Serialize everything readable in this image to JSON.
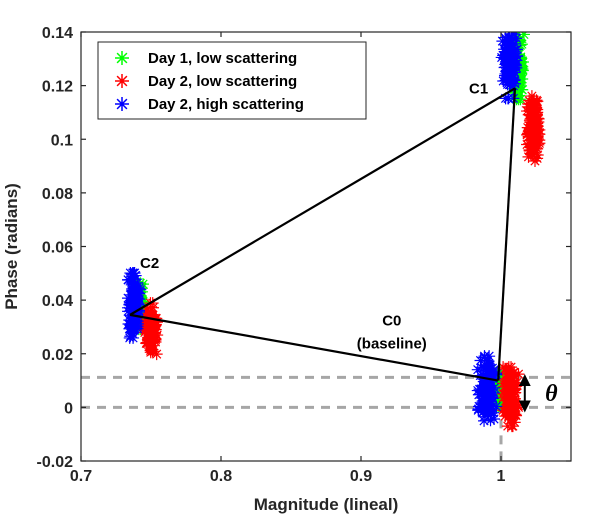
{
  "chart_data": {
    "type": "scatter",
    "title": "",
    "xlabel": "Magnitude (lineal)",
    "ylabel": "Phase (radians)",
    "xlim": [
      0.7,
      1.05
    ],
    "ylim": [
      -0.02,
      0.14
    ],
    "x_ticks": [
      0.7,
      0.8,
      0.9,
      1.0
    ],
    "x_tick_labels": [
      "0.7",
      "0.8",
      "0.9",
      "1"
    ],
    "y_ticks": [
      -0.02,
      0,
      0.02,
      0.04,
      0.06,
      0.08,
      0.1,
      0.12,
      0.14
    ],
    "y_tick_labels": [
      "-0.02",
      "0",
      "0.02",
      "0.04",
      "0.06",
      "0.08",
      "0.1",
      "0.12",
      "0.14"
    ],
    "grid": false,
    "legend_position": "top-left",
    "marker": "asterisk",
    "series": [
      {
        "name": "Day 1, low scattering",
        "color": "#00ff00",
        "clusters": [
          {
            "x_center": 1.0,
            "y_center": 0.007,
            "x_spread": 0.01,
            "y_spread": 0.012
          },
          {
            "x_center": 0.741,
            "y_center": 0.038,
            "x_spread": 0.006,
            "y_spread": 0.016
          },
          {
            "x_center": 1.012,
            "y_center": 0.127,
            "x_spread": 0.008,
            "y_spread": 0.022
          }
        ]
      },
      {
        "name": "Day 2, low scattering",
        "color": "#ff0000",
        "clusters": [
          {
            "x_center": 1.007,
            "y_center": 0.004,
            "x_spread": 0.01,
            "y_spread": 0.02
          },
          {
            "x_center": 0.75,
            "y_center": 0.029,
            "x_spread": 0.008,
            "y_spread": 0.018
          },
          {
            "x_center": 1.023,
            "y_center": 0.104,
            "x_spread": 0.008,
            "y_spread": 0.022
          }
        ]
      },
      {
        "name": "Day 2, high scattering",
        "color": "#0000ff",
        "clusters": [
          {
            "x_center": 0.99,
            "y_center": 0.007,
            "x_spread": 0.012,
            "y_spread": 0.022
          },
          {
            "x_center": 0.738,
            "y_center": 0.038,
            "x_spread": 0.008,
            "y_spread": 0.022
          },
          {
            "x_center": 1.006,
            "y_center": 0.129,
            "x_spread": 0.01,
            "y_spread": 0.025
          }
        ]
      }
    ],
    "triangle": [
      {
        "x": 0.735,
        "y": 0.0345
      },
      {
        "x": 1.01,
        "y": 0.119
      },
      {
        "x": 0.998,
        "y": 0.01
      }
    ],
    "reference_lines": {
      "vertical_x": 1.0,
      "horizontal_y": [
        0.0,
        0.0112
      ],
      "color": "#a6a6a6"
    },
    "annotations": [
      {
        "text": "C1",
        "x": 0.984,
        "y": 0.1185
      },
      {
        "text": "C2",
        "x": 0.749,
        "y": 0.0535
      },
      {
        "text": "C0",
        "x": 0.922,
        "y": 0.032
      },
      {
        "text": "(baseline)",
        "x": 0.922,
        "y": 0.0235
      },
      {
        "text": "θ",
        "x": 1.036,
        "y": 0.0045
      }
    ],
    "theta_arrow": {
      "x": 1.017,
      "y_from": -0.001,
      "y_to": 0.0115
    }
  }
}
